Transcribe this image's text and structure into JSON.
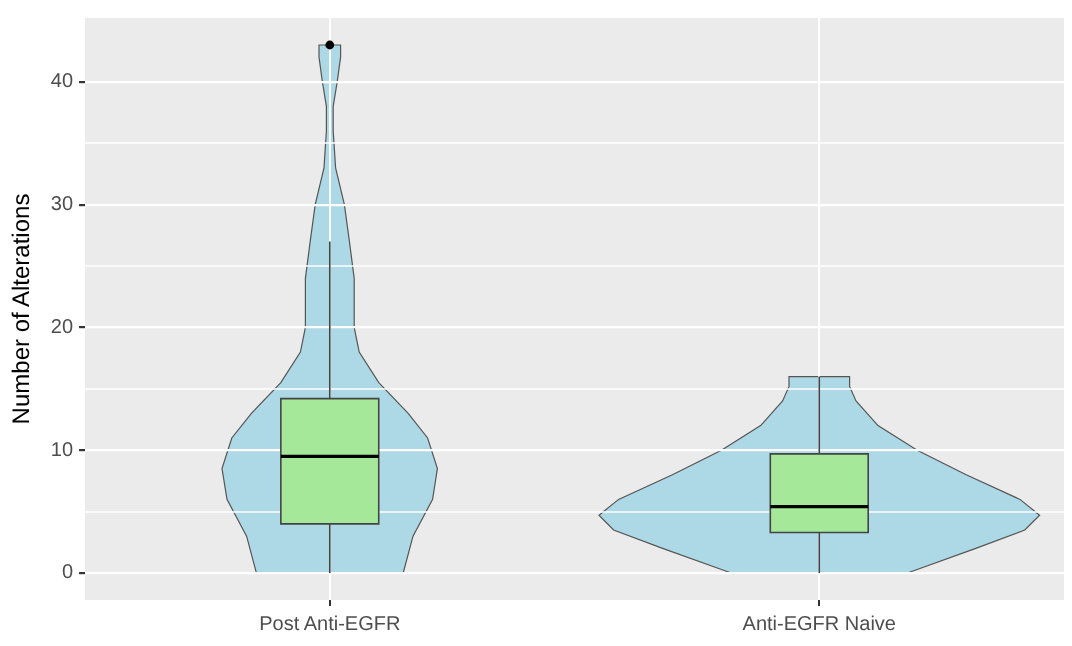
{
  "chart_data": {
    "type": "box",
    "ylabel": "Number of Alterations",
    "categories": [
      "Post Anti-EGFR",
      "Anti-EGFR Naive"
    ],
    "boxes": [
      {
        "low": 0,
        "q1": 4,
        "median": 9.5,
        "q3": 14.2,
        "high": 27,
        "outliers": [
          43
        ]
      },
      {
        "low": 0,
        "q1": 3.3,
        "median": 5.4,
        "q3": 9.7,
        "high": 16
      }
    ],
    "color": "#a6e89a",
    "ylim": [
      -2.2,
      45.2
    ],
    "yticks": [
      0,
      {
        "value": 5,
        "label": null
      },
      10,
      {
        "value": 15,
        "label": null
      },
      20,
      {
        "value": 25,
        "label": null
      },
      30,
      {
        "value": 35,
        "label": null
      },
      40
    ],
    "grid": true
  }
}
